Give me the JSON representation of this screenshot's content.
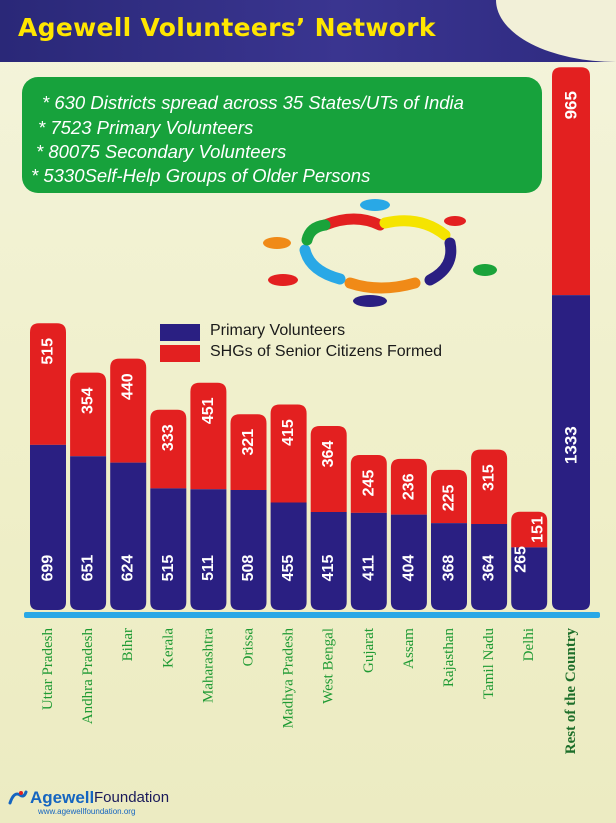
{
  "header": {
    "title": "Agewell Volunteers’ Network",
    "bg_color": "#2e2a80",
    "title_color": "#ffe600"
  },
  "facts": [
    "* 630 Districts spread across 35 States/UTs of India",
    "* 7523 Primary Volunteers",
    "* 80075 Secondary Volunteers",
    "* 5330Self-Help Groups of Older Persons"
  ],
  "colors": {
    "primary": "#2a1f82",
    "shg": "#e32020",
    "facts_box": "#17a23c",
    "baseline": "#29a8e6",
    "state_label": "#1f9a33",
    "rest_label": "#1d6e2a"
  },
  "chart_data": {
    "type": "bar",
    "stacked": true,
    "categories": [
      "Uttar Pradesh",
      "Andhra Pradesh",
      "Bihar",
      "Kerala",
      "Maharashtra",
      "Orissa",
      "Madhya Pradesh",
      "West Bengal",
      "Gujarat",
      "Assam",
      "Rajasthan",
      "Tamil Nadu",
      "Delhi",
      "Rest of the Country"
    ],
    "series": [
      {
        "name": "Primary Volunteers",
        "color": "#2a1f82",
        "values": [
          699,
          651,
          624,
          515,
          511,
          508,
          455,
          415,
          411,
          404,
          368,
          364,
          265,
          1333
        ]
      },
      {
        "name": "SHGs of Senior Citizens Formed",
        "color": "#e32020",
        "values": [
          515,
          354,
          440,
          333,
          451,
          321,
          415,
          364,
          245,
          236,
          225,
          315,
          151,
          965
        ]
      }
    ],
    "legend": "middle-left",
    "grid": false
  },
  "footer": {
    "brand": "Agewell",
    "brand_suffix": "Foundation",
    "url": "www.agewellfoundation.org"
  }
}
